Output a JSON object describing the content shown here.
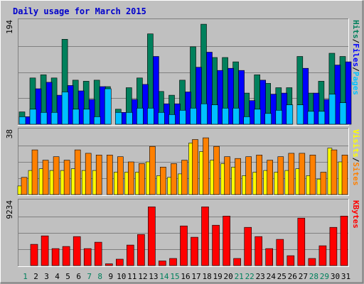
{
  "chart_data": {
    "type": "bar",
    "title": "Daily usage for March 2015",
    "x": [
      "1",
      "2",
      "3",
      "4",
      "5",
      "6",
      "7",
      "8",
      "9",
      "10",
      "11",
      "12",
      "13",
      "14",
      "15",
      "16",
      "17",
      "18",
      "19",
      "20",
      "21",
      "22",
      "23",
      "24",
      "25",
      "26",
      "27",
      "28",
      "29",
      "30",
      "31"
    ],
    "weekend_days": [
      "1",
      "7",
      "8",
      "14",
      "15",
      "21",
      "22",
      "28",
      "29"
    ],
    "colors": {
      "hits": "#00805c",
      "files": "#0000ff",
      "pages": "#00c0ff",
      "visits": "#ffff00",
      "sites": "#ff8000",
      "kbytes": "#ff0000",
      "title": "#0000cc",
      "weekend": "#00805c",
      "weekday": "#000000",
      "background": "#c0c0c0",
      "plot_background": "#c0c0c0"
    },
    "panels": [
      {
        "id": "top",
        "ymax": 194,
        "ymax_label": "194",
        "side_label": [
          "Pages",
          "/",
          "Files",
          "/",
          "Hits"
        ],
        "series": [
          {
            "name": "Hits",
            "values": [
              23,
              86,
              92,
              86,
              158,
              82,
              80,
              82,
              70,
              28,
              68,
              86,
              168,
              61,
              54,
              82,
              144,
              186,
              124,
              124,
              116,
              58,
              92,
              76,
              68,
              68,
              126,
              58,
              80,
              132,
              126
            ]
          },
          {
            "name": "Files",
            "values": [
              14,
              66,
              78,
              54,
              72,
              62,
              46,
              70,
              0,
              22,
              46,
              74,
              126,
              38,
              38,
              60,
              106,
              134,
              100,
              104,
              100,
              44,
              82,
              56,
              58,
              0,
              104,
              58,
              46,
              110,
              116
            ]
          },
          {
            "name": "Pages",
            "values": [
              14,
              28,
              22,
              22,
              60,
              28,
              28,
              14,
              66,
              22,
              22,
              30,
              30,
              22,
              18,
              26,
              30,
              38,
              36,
              30,
              30,
              14,
              28,
              20,
              26,
              36,
              36,
              24,
              24,
              56,
              40
            ]
          }
        ]
      },
      {
        "id": "middle",
        "ymax": 38,
        "ymax_label": "38",
        "side_label": [
          "Sites",
          "/",
          "Visits"
        ],
        "series": [
          {
            "name": "Visits",
            "values": [
              5,
              14,
              15,
              14,
              14,
              15,
              14,
              14,
              0,
              13,
              13,
              13,
              19,
              11,
              10,
              12,
              30,
              25,
              20,
              18,
              16,
              11,
              13,
              14,
              13,
              14,
              15,
              11,
              9,
              27,
              19
            ]
          },
          {
            "name": "Sites",
            "values": [
              10,
              26,
              20,
              22,
              20,
              26,
              24,
              23,
              23,
              22,
              19,
              18,
              28,
              16,
              18,
              20,
              32,
              33,
              28,
              22,
              21,
              22,
              23,
              20,
              22,
              24,
              24,
              23,
              13,
              26,
              23
            ]
          }
        ]
      },
      {
        "id": "bottom",
        "ymax": 9234,
        "ymax_label": "9234",
        "side_label": [
          "KBytes"
        ],
        "series": [
          {
            "name": "KBytes",
            "values": [
              0,
              3000,
              4200,
              2400,
              2700,
              4100,
              2400,
              3300,
              250,
              900,
              2900,
              4400,
              8300,
              650,
              1000,
              5600,
              4000,
              8300,
              5700,
              7000,
              1000,
              5400,
              4100,
              2400,
              3700,
              1400,
              6700,
              1000,
              2800,
              5400,
              7000
            ]
          }
        ]
      }
    ]
  }
}
